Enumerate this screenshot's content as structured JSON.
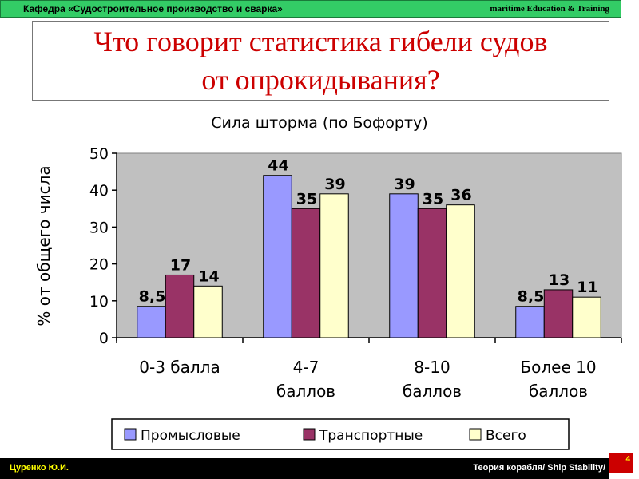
{
  "header": {
    "department": "Кафедра «Судостроительное производство и сварка»",
    "brand": "maritime Education & Training"
  },
  "slide": {
    "title_line1": "Что говорит статистика гибели судов",
    "title_line2": "от опрокидывания?"
  },
  "footer": {
    "author": "Цуренко Ю.И.",
    "course": "Теория корабля/ Ship Stability/",
    "page_number": "4"
  },
  "chart_data": {
    "type": "bar",
    "title": "Сила шторма (по Бофорту)",
    "ylabel": "% от общего числа",
    "xlabel": "",
    "ylim": [
      0,
      50
    ],
    "yticks": [
      "0",
      "10",
      "20",
      "30",
      "40",
      "50"
    ],
    "categories": [
      [
        "0-3 балла"
      ],
      [
        "4-7",
        "баллов"
      ],
      [
        "8-10",
        "баллов"
      ],
      [
        "Более 10",
        "баллов"
      ]
    ],
    "series": [
      {
        "name": "Промысловые",
        "color": "#9999ff",
        "values": [
          8.5,
          44,
          39,
          8.5
        ],
        "labels": [
          "8,5",
          "44",
          "39",
          "8,5"
        ]
      },
      {
        "name": "Транспортные",
        "color": "#993366",
        "values": [
          17,
          35,
          35,
          13
        ],
        "labels": [
          "17",
          "35",
          "35",
          "13"
        ]
      },
      {
        "name": "Всего",
        "color": "#ffffcc",
        "values": [
          14,
          39,
          36,
          11
        ],
        "labels": [
          "14",
          "39",
          "36",
          "11"
        ]
      }
    ],
    "grid": false,
    "legend": "bottom",
    "plot_background": "#c0c0c0"
  }
}
